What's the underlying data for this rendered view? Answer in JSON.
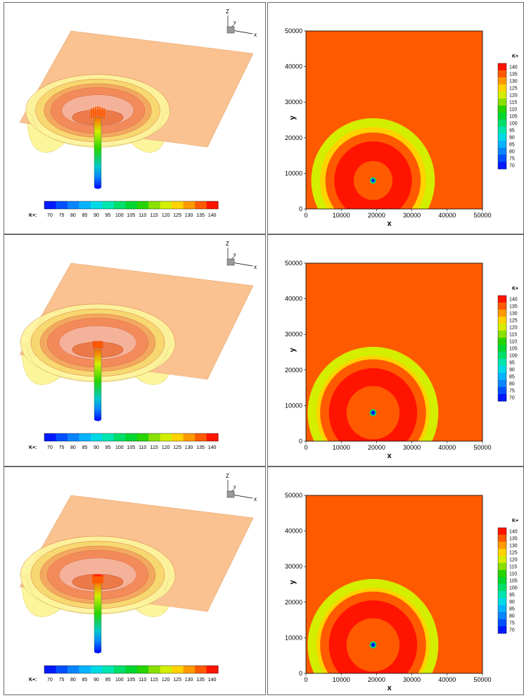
{
  "colorbar_label": "K+",
  "colorbar_ticks": [
    "70",
    "75",
    "80",
    "85",
    "90",
    "95",
    "100",
    "105",
    "110",
    "115",
    "120",
    "125",
    "130",
    "135",
    "140"
  ],
  "colorbar_colors": [
    "#0019ff",
    "#0050ff",
    "#0a84ff",
    "#06b3ff",
    "#00d9e6",
    "#00e6b0",
    "#00df6a",
    "#00d630",
    "#28d400",
    "#8ae000",
    "#d4ee00",
    "#ffd200",
    "#ff9a00",
    "#ff5a00",
    "#ff1400"
  ],
  "triad": {
    "z": "Z",
    "y": "y",
    "x": "x"
  },
  "colors": {
    "plane": "#f9c290",
    "shell_outer": "#fdf59c",
    "shell_mid": "#f7d66d",
    "shell_inner": "#f4885a",
    "background_field": "#ff8d00"
  },
  "chart_data": [
    {
      "type": "contour",
      "view": "3d-isosurface",
      "colorbar": "horizontal",
      "variable": "K+",
      "ticks": [
        70,
        75,
        80,
        85,
        90,
        95,
        100,
        105,
        110,
        115,
        120,
        125,
        130,
        135,
        140
      ]
    },
    {
      "type": "contour",
      "view": "2d",
      "variable": "K+",
      "xlabel": "x",
      "ylabel": "y",
      "xlim": [
        0,
        50000
      ],
      "ylim": [
        0,
        50000
      ],
      "xticks": [
        0,
        10000,
        20000,
        30000,
        40000,
        50000
      ],
      "yticks": [
        0,
        10000,
        20000,
        30000,
        40000,
        50000
      ],
      "background_level": 135,
      "center": [
        19000,
        8000
      ],
      "rings": [
        {
          "level": 120,
          "r": 17500
        },
        {
          "level": 125,
          "r": 15000
        },
        {
          "level": 135,
          "r": 13500
        },
        {
          "level": 140,
          "r": 11000
        },
        {
          "level": 135,
          "r": 5500
        },
        {
          "level": 100,
          "r": 900
        },
        {
          "level": 70,
          "r": 500
        }
      ]
    },
    {
      "type": "contour",
      "view": "3d-isosurface",
      "colorbar": "horizontal",
      "variable": "K+",
      "ticks": [
        70,
        75,
        80,
        85,
        90,
        95,
        100,
        105,
        110,
        115,
        120,
        125,
        130,
        135,
        140
      ]
    },
    {
      "type": "contour",
      "view": "2d",
      "variable": "K+",
      "xlabel": "x",
      "ylabel": "y",
      "xlim": [
        0,
        50000
      ],
      "ylim": [
        0,
        50000
      ],
      "xticks": [
        0,
        10000,
        20000,
        30000,
        40000,
        50000
      ],
      "yticks": [
        0,
        10000,
        20000,
        30000,
        40000,
        50000
      ],
      "background_level": 135,
      "center": [
        19000,
        8000
      ],
      "rings": [
        {
          "level": 120,
          "r": 18500
        },
        {
          "level": 125,
          "r": 16000
        },
        {
          "level": 135,
          "r": 15000
        },
        {
          "level": 140,
          "r": 12500
        },
        {
          "level": 135,
          "r": 7500
        },
        {
          "level": 100,
          "r": 1000
        },
        {
          "level": 70,
          "r": 600
        }
      ]
    },
    {
      "type": "contour",
      "view": "3d-isosurface",
      "colorbar": "horizontal",
      "variable": "K+",
      "ticks": [
        70,
        75,
        80,
        85,
        90,
        95,
        100,
        105,
        110,
        115,
        120,
        125,
        130,
        135,
        140
      ]
    },
    {
      "type": "contour",
      "view": "2d",
      "variable": "K+",
      "xlabel": "x",
      "ylabel": "y",
      "xlim": [
        0,
        50000
      ],
      "ylim": [
        0,
        50000
      ],
      "xticks": [
        0,
        10000,
        20000,
        30000,
        40000,
        50000
      ],
      "yticks": [
        0,
        10000,
        20000,
        30000,
        40000,
        50000
      ],
      "background_level": 135,
      "center": [
        19000,
        8000
      ],
      "rings": [
        {
          "level": 120,
          "r": 18500
        },
        {
          "level": 125,
          "r": 16000
        },
        {
          "level": 135,
          "r": 15000
        },
        {
          "level": 140,
          "r": 12500
        },
        {
          "level": 135,
          "r": 7500
        },
        {
          "level": 100,
          "r": 1000
        },
        {
          "level": 70,
          "r": 600
        }
      ]
    }
  ]
}
